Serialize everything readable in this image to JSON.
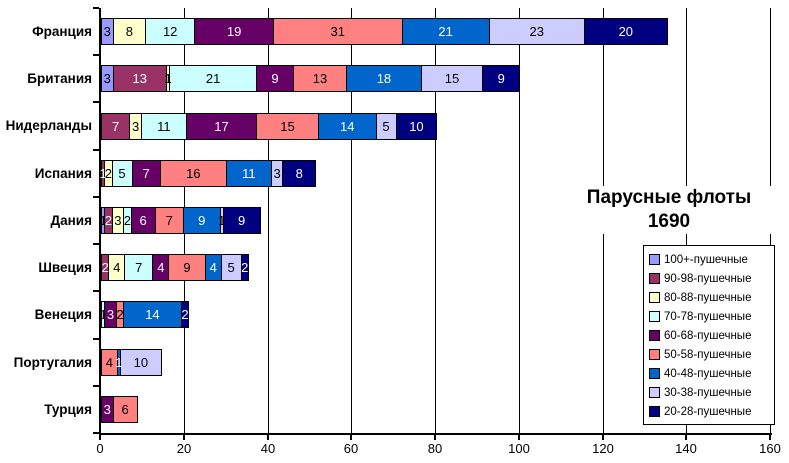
{
  "title": {
    "line1": "Парусные флоты",
    "line2": "1690"
  },
  "chart_data": {
    "type": "bar",
    "orientation": "horizontal",
    "stacked": true,
    "title": "Парусные флоты 1690",
    "categories": [
      "Франция",
      "Британия",
      "Нидерланды",
      "Испания",
      "Дания",
      "Швеция",
      "Венеция",
      "Португалия",
      "Турция"
    ],
    "series": [
      {
        "name": "100+-пушечные",
        "color": "#9999FF",
        "label_color": "#000000",
        "values": [
          3,
          3,
          0,
          0,
          1,
          0,
          0,
          0,
          0
        ]
      },
      {
        "name": "90-98-пушечные",
        "color": "#993366",
        "label_color": "#FFFFFF",
        "values": [
          0,
          13,
          7,
          1,
          2,
          2,
          0,
          0,
          0
        ]
      },
      {
        "name": "80-88-пушечные",
        "color": "#FFFFCC",
        "label_color": "#000000",
        "values": [
          8,
          1,
          3,
          2,
          3,
          4,
          0,
          0,
          0
        ]
      },
      {
        "name": "70-78-пушечные",
        "color": "#CCFFFF",
        "label_color": "#000000",
        "values": [
          12,
          21,
          11,
          5,
          2,
          7,
          1,
          0,
          0
        ]
      },
      {
        "name": "60-68-пушечные",
        "color": "#660066",
        "label_color": "#FFFFFF",
        "values": [
          19,
          9,
          17,
          7,
          6,
          4,
          3,
          0,
          3
        ]
      },
      {
        "name": "50-58-пушечные",
        "color": "#FF8080",
        "label_color": "#000000",
        "values": [
          31,
          13,
          15,
          16,
          7,
          9,
          2,
          4,
          6
        ]
      },
      {
        "name": "40-48-пушечные",
        "color": "#0066CC",
        "label_color": "#FFFFFF",
        "values": [
          21,
          18,
          14,
          11,
          9,
          4,
          14,
          1,
          0
        ]
      },
      {
        "name": "30-38-пушечные",
        "color": "#CCCCFF",
        "label_color": "#000000",
        "values": [
          23,
          15,
          5,
          3,
          1,
          5,
          0,
          10,
          0
        ]
      },
      {
        "name": "20-28-пушечные",
        "color": "#000080",
        "label_color": "#FFFFFF",
        "values": [
          20,
          9,
          10,
          8,
          9,
          2,
          2,
          0,
          0
        ]
      }
    ],
    "totals": [
      137,
      102,
      82,
      53,
      40,
      37,
      22,
      15,
      9
    ],
    "xlim": [
      0,
      160
    ],
    "x_ticks": [
      0,
      20,
      40,
      60,
      80,
      100,
      120,
      140,
      160
    ],
    "grid": "vertical",
    "legend_position": "inside-right"
  }
}
